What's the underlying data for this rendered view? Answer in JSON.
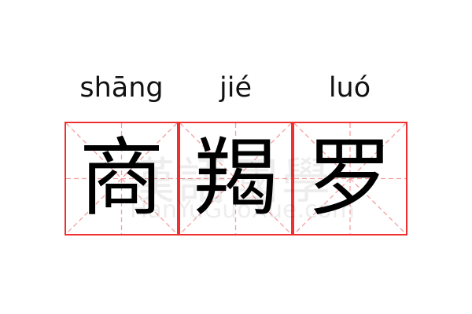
{
  "entries": [
    {
      "pinyin": "shāng",
      "char": "商"
    },
    {
      "pinyin": "jié",
      "char": "羯"
    },
    {
      "pinyin": "luó",
      "char": "罗"
    }
  ],
  "watermark": {
    "cjk": "漢語國學",
    "latin": "HanYuGuoXue.com"
  },
  "colors": {
    "border": "#f03030",
    "guide": "#f4a0a0",
    "text": "#000000"
  }
}
